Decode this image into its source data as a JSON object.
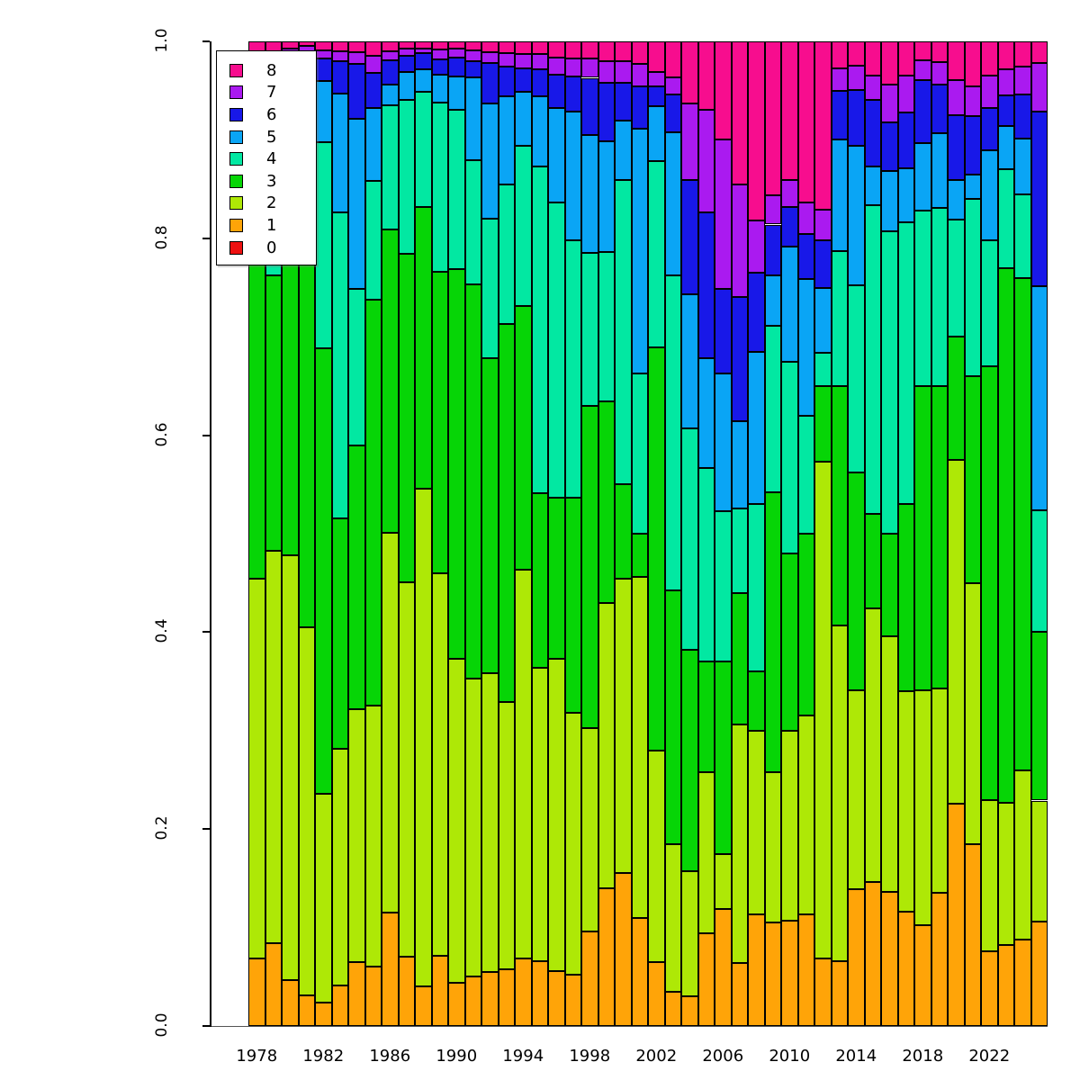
{
  "chart_data": {
    "type": "bar",
    "subtype": "stacked-proportional",
    "title": "",
    "xlabel": "",
    "ylabel": "",
    "ylim": [
      0.0,
      1.0
    ],
    "grid": false,
    "legend_position": "top-left",
    "classes": [
      "0",
      "1",
      "2",
      "3",
      "4",
      "5",
      "6",
      "7",
      "8"
    ],
    "colors": [
      "#EE1111",
      "#FFA408",
      "#AEE806",
      "#06D506",
      "#02E8A2",
      "#0AA5F5",
      "#1818E8",
      "#AA1AF0",
      "#F70D8E"
    ],
    "categories": [
      1978,
      1979,
      1980,
      1981,
      1982,
      1983,
      1984,
      1985,
      1986,
      1987,
      1988,
      1989,
      1990,
      1991,
      1992,
      1993,
      1994,
      1995,
      1996,
      1997,
      1998,
      1999,
      2000,
      2001,
      2002,
      2003,
      2004,
      2005,
      2006,
      2007,
      2008,
      2009,
      2010,
      2011,
      2012,
      2013,
      2014,
      2015,
      2016,
      2017,
      2018,
      2019,
      2020,
      2021,
      2022,
      2023,
      2024,
      2025
    ],
    "bars": [
      {
        "year": 1978,
        "values": [
          0,
          0.069,
          0.385,
          0.336,
          0.11,
          0.055,
          0.025,
          0.01,
          0.01
        ]
      },
      {
        "year": 1979,
        "values": [
          0,
          0.084,
          0.399,
          0.279,
          0.138,
          0.055,
          0.027,
          0.008,
          0.01
        ]
      },
      {
        "year": 1980,
        "values": [
          0,
          0.047,
          0.431,
          0.312,
          0.125,
          0.053,
          0.017,
          0.008,
          0.007
        ]
      },
      {
        "year": 1981,
        "values": [
          0,
          0.031,
          0.374,
          0.37,
          0.149,
          0.04,
          0.023,
          0.008,
          0.005
        ]
      },
      {
        "year": 1982,
        "values": [
          0,
          0.024,
          0.212,
          0.452,
          0.21,
          0.062,
          0.023,
          0.008,
          0.009
        ]
      },
      {
        "year": 1983,
        "values": [
          0,
          0.041,
          0.241,
          0.234,
          0.31,
          0.121,
          0.033,
          0.01,
          0.01
        ]
      },
      {
        "year": 1984,
        "values": [
          0,
          0.065,
          0.257,
          0.268,
          0.159,
          0.172,
          0.056,
          0.012,
          0.011
        ]
      },
      {
        "year": 1985,
        "values": [
          0,
          0.06,
          0.265,
          0.413,
          0.12,
          0.074,
          0.036,
          0.017,
          0.015
        ]
      },
      {
        "year": 1986,
        "values": [
          0,
          0.115,
          0.386,
          0.308,
          0.126,
          0.021,
          0.025,
          0.009,
          0.01
        ]
      },
      {
        "year": 1987,
        "values": [
          0,
          0.07,
          0.381,
          0.333,
          0.157,
          0.028,
          0.016,
          0.008,
          0.007
        ]
      },
      {
        "year": 1988,
        "values": [
          0,
          0.04,
          0.506,
          0.286,
          0.117,
          0.023,
          0.016,
          0.005,
          0.007
        ]
      },
      {
        "year": 1989,
        "values": [
          0,
          0.071,
          0.389,
          0.306,
          0.172,
          0.028,
          0.016,
          0.01,
          0.008
        ]
      },
      {
        "year": 1990,
        "values": [
          0,
          0.044,
          0.329,
          0.396,
          0.162,
          0.033,
          0.02,
          0.009,
          0.007
        ]
      },
      {
        "year": 1991,
        "values": [
          0,
          0.05,
          0.303,
          0.4,
          0.126,
          0.084,
          0.017,
          0.011,
          0.009
        ]
      },
      {
        "year": 1992,
        "values": [
          0,
          0.055,
          0.303,
          0.32,
          0.142,
          0.117,
          0.041,
          0.011,
          0.011
        ]
      },
      {
        "year": 1993,
        "values": [
          0,
          0.058,
          0.271,
          0.384,
          0.142,
          0.089,
          0.03,
          0.014,
          0.012
        ]
      },
      {
        "year": 1994,
        "values": [
          0,
          0.069,
          0.394,
          0.268,
          0.163,
          0.055,
          0.024,
          0.014,
          0.013
        ]
      },
      {
        "year": 1995,
        "values": [
          0,
          0.066,
          0.298,
          0.177,
          0.332,
          0.071,
          0.028,
          0.015,
          0.013
        ]
      },
      {
        "year": 1996,
        "values": [
          0,
          0.056,
          0.317,
          0.164,
          0.299,
          0.096,
          0.034,
          0.018,
          0.016
        ]
      },
      {
        "year": 1997,
        "values": [
          0,
          0.052,
          0.266,
          0.219,
          0.261,
          0.131,
          0.035,
          0.019,
          0.017
        ]
      },
      {
        "year": 1998,
        "values": [
          0,
          0.096,
          0.207,
          0.327,
          0.155,
          0.12,
          0.058,
          0.02,
          0.017
        ]
      },
      {
        "year": 1999,
        "values": [
          0,
          0.14,
          0.29,
          0.204,
          0.152,
          0.113,
          0.059,
          0.022,
          0.02
        ]
      },
      {
        "year": 2000,
        "values": [
          0,
          0.155,
          0.299,
          0.096,
          0.309,
          0.061,
          0.038,
          0.022,
          0.02
        ]
      },
      {
        "year": 2001,
        "values": [
          0,
          0.11,
          0.346,
          0.044,
          0.163,
          0.248,
          0.043,
          0.023,
          0.023
        ]
      },
      {
        "year": 2002,
        "values": [
          0,
          0.065,
          0.215,
          0.409,
          0.189,
          0.056,
          0.02,
          0.015,
          0.031
        ]
      },
      {
        "year": 2003,
        "values": [
          0,
          0.035,
          0.15,
          0.257,
          0.32,
          0.146,
          0.038,
          0.017,
          0.037
        ]
      },
      {
        "year": 2004,
        "values": [
          0,
          0.03,
          0.127,
          0.225,
          0.225,
          0.136,
          0.116,
          0.078,
          0.063
        ]
      },
      {
        "year": 2005,
        "values": [
          0,
          0.094,
          0.164,
          0.112,
          0.197,
          0.111,
          0.148,
          0.105,
          0.069
        ]
      },
      {
        "year": 2006,
        "values": [
          0,
          0.119,
          0.056,
          0.195,
          0.153,
          0.14,
          0.086,
          0.151,
          0.1
        ]
      },
      {
        "year": 2007,
        "values": [
          0,
          0.064,
          0.242,
          0.134,
          0.086,
          0.088,
          0.126,
          0.115,
          0.145
        ]
      },
      {
        "year": 2008,
        "values": [
          0,
          0.113,
          0.187,
          0.06,
          0.17,
          0.155,
          0.08,
          0.053,
          0.182
        ]
      },
      {
        "year": 2009,
        "values": [
          0,
          0.105,
          0.153,
          0.284,
          0.169,
          0.051,
          0.052,
          0.03,
          0.156
        ]
      },
      {
        "year": 2010,
        "values": [
          0,
          0.107,
          0.193,
          0.18,
          0.195,
          0.117,
          0.04,
          0.027,
          0.141
        ]
      },
      {
        "year": 2011,
        "values": [
          0,
          0.113,
          0.202,
          0.185,
          0.12,
          0.139,
          0.045,
          0.032,
          0.164
        ]
      },
      {
        "year": 2012,
        "values": [
          0,
          0.069,
          0.504,
          0.077,
          0.034,
          0.066,
          0.048,
          0.031,
          0.171
        ]
      },
      {
        "year": 2013,
        "values": [
          0,
          0.066,
          0.341,
          0.243,
          0.137,
          0.113,
          0.05,
          0.023,
          0.027
        ]
      },
      {
        "year": 2014,
        "values": [
          0,
          0.139,
          0.202,
          0.221,
          0.19,
          0.142,
          0.057,
          0.024,
          0.025
        ]
      },
      {
        "year": 2015,
        "values": [
          0,
          0.146,
          0.278,
          0.096,
          0.314,
          0.039,
          0.068,
          0.024,
          0.035
        ]
      },
      {
        "year": 2016,
        "values": [
          0,
          0.136,
          0.26,
          0.104,
          0.307,
          0.061,
          0.05,
          0.038,
          0.044
        ]
      },
      {
        "year": 2017,
        "values": [
          0,
          0.116,
          0.224,
          0.19,
          0.286,
          0.055,
          0.057,
          0.037,
          0.035
        ]
      },
      {
        "year": 2018,
        "values": [
          0,
          0.102,
          0.239,
          0.309,
          0.178,
          0.069,
          0.064,
          0.02,
          0.019
        ]
      },
      {
        "year": 2019,
        "values": [
          0,
          0.135,
          0.208,
          0.307,
          0.181,
          0.076,
          0.049,
          0.023,
          0.021
        ]
      },
      {
        "year": 2020,
        "values": [
          0,
          0.226,
          0.349,
          0.125,
          0.119,
          0.04,
          0.066,
          0.036,
          0.039
        ]
      },
      {
        "year": 2021,
        "values": [
          0,
          0.185,
          0.265,
          0.21,
          0.18,
          0.025,
          0.059,
          0.03,
          0.046
        ]
      },
      {
        "year": 2022,
        "values": [
          0,
          0.076,
          0.153,
          0.441,
          0.128,
          0.091,
          0.043,
          0.033,
          0.035
        ]
      },
      {
        "year": 2023,
        "values": [
          0,
          0.082,
          0.145,
          0.543,
          0.1,
          0.044,
          0.031,
          0.027,
          0.028
        ]
      },
      {
        "year": 2024,
        "values": [
          0,
          0.088,
          0.172,
          0.5,
          0.085,
          0.056,
          0.045,
          0.028,
          0.026
        ]
      },
      {
        "year": 2025,
        "values": [
          0,
          0.106,
          0.123,
          0.171,
          0.124,
          0.227,
          0.178,
          0.049,
          0.022
        ]
      }
    ]
  },
  "legend": {
    "items": [
      {
        "label": "8",
        "color": "#F70D8E"
      },
      {
        "label": "7",
        "color": "#AA1AF0"
      },
      {
        "label": "6",
        "color": "#1818E8"
      },
      {
        "label": "5",
        "color": "#0AA5F5"
      },
      {
        "label": "4",
        "color": "#02E8A2"
      },
      {
        "label": "3",
        "color": "#06D506"
      },
      {
        "label": "2",
        "color": "#AEE806"
      },
      {
        "label": "1",
        "color": "#FFA408"
      },
      {
        "label": "0",
        "color": "#EE1111"
      }
    ]
  },
  "y_axis": {
    "ticks": [
      0.0,
      0.2,
      0.4,
      0.6,
      0.8,
      1.0
    ],
    "tick_labels": [
      "0.0",
      "0.2",
      "0.4",
      "0.6",
      "0.8",
      "1.0"
    ]
  },
  "x_axis": {
    "tick_years": [
      1978,
      1982,
      1986,
      1990,
      1994,
      1998,
      2002,
      2006,
      2010,
      2014,
      2018,
      2022
    ]
  }
}
